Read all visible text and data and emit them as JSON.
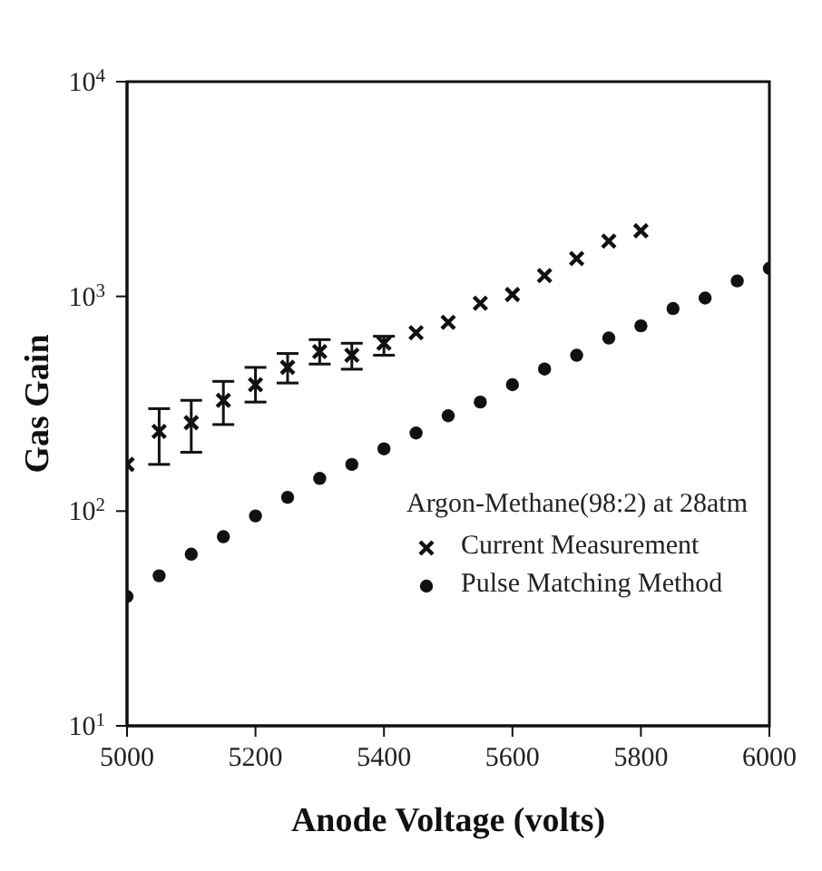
{
  "chart_data": {
    "type": "scatter",
    "xlabel": "Anode Voltage   (volts)",
    "ylabel": "Gas Gain",
    "legend_title": "Argon-Methane(98:2) at 28atm",
    "legend": "bottom right",
    "log": "y",
    "grid": false,
    "xlim": [
      5000,
      6000
    ],
    "xticks": [
      5000,
      5200,
      5400,
      5600,
      5800,
      6000
    ],
    "ylim": [
      10,
      10000
    ],
    "yticks": [
      {
        "value": 10,
        "label": "10$^{1}$"
      },
      {
        "value": 100,
        "label": "10$^{2}$"
      },
      {
        "value": 1000,
        "label": "10$^{3}$"
      },
      {
        "value": 10000,
        "label": "10$^{4}$"
      }
    ],
    "series": [
      {
        "name": "Current Measurement",
        "color": "#111111",
        "marker": "cross",
        "x": [
          5000,
          5050,
          5100,
          5150,
          5200,
          5250,
          5300,
          5350,
          5400,
          5450,
          5500,
          5550,
          5600,
          5650,
          5700,
          5750,
          5800
        ],
        "values": [
          165,
          235,
          258,
          328,
          388,
          467,
          553,
          532,
          605,
          677,
          757,
          929,
          1020,
          1250,
          1500,
          1810,
          2020
        ],
        "errors": [
          null,
          [
            165,
            300
          ],
          [
            188,
            328
          ],
          [
            253,
            402
          ],
          [
            322,
            467
          ],
          [
            395,
            542
          ],
          [
            484,
            629
          ],
          [
            458,
            605
          ],
          [
            532,
            652
          ],
          null,
          null,
          null,
          null,
          null,
          null,
          null,
          null
        ]
      },
      {
        "name": "Pulse Matching Method",
        "color": "#111111",
        "marker": "circle",
        "x": [
          5000,
          5050,
          5100,
          5150,
          5200,
          5250,
          5300,
          5350,
          5400,
          5450,
          5500,
          5550,
          5600,
          5650,
          5700,
          5750,
          5800,
          5850,
          5900,
          5950,
          6000
        ],
        "values": [
          40,
          50,
          63,
          76,
          95,
          116,
          142,
          165,
          195,
          231,
          278,
          322,
          388,
          459,
          532,
          640,
          729,
          878,
          982,
          1180,
          1350
        ]
      }
    ]
  }
}
